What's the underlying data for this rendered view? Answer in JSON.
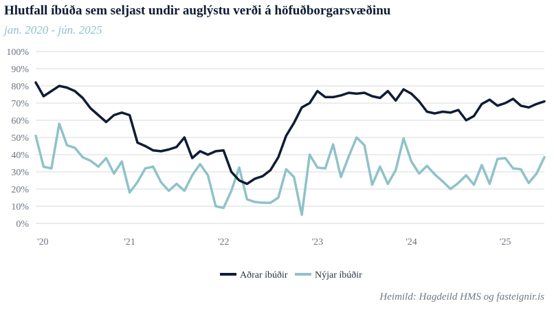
{
  "title": "Hlutfall íbúða sem seljast undir auglýstu verði á höfuðborgarsvæðinu",
  "subtitle": "jan. 2020 - jún. 2025",
  "source": "Heimild: Hagdeild HMS og fasteignir.is",
  "colors": {
    "annad": "#0f1c33",
    "nyjar": "#8fc2c9",
    "grid": "#d4d8dc"
  },
  "chart_data": {
    "type": "line",
    "title": "Hlutfall íbúða sem seljast undir auglýstu verði á höfuðborgarsvæðinu",
    "subtitle": "jan. 2020 - jún. 2025",
    "x": [
      "2020-01",
      "2020-02",
      "2020-03",
      "2020-04",
      "2020-05",
      "2020-06",
      "2020-07",
      "2020-08",
      "2020-09",
      "2020-10",
      "2020-11",
      "2020-12",
      "2021-01",
      "2021-02",
      "2021-03",
      "2021-04",
      "2021-05",
      "2021-06",
      "2021-07",
      "2021-08",
      "2021-09",
      "2021-10",
      "2021-11",
      "2021-12",
      "2022-01",
      "2022-02",
      "2022-03",
      "2022-04",
      "2022-05",
      "2022-06",
      "2022-07",
      "2022-08",
      "2022-09",
      "2022-10",
      "2022-11",
      "2022-12",
      "2023-01",
      "2023-02",
      "2023-03",
      "2023-04",
      "2023-05",
      "2023-06",
      "2023-07",
      "2023-08",
      "2023-09",
      "2023-10",
      "2023-11",
      "2023-12",
      "2024-01",
      "2024-02",
      "2024-03",
      "2024-04",
      "2024-05",
      "2024-06",
      "2024-07",
      "2024-08",
      "2024-09",
      "2024-10",
      "2024-11",
      "2024-12",
      "2025-01",
      "2025-02",
      "2025-03",
      "2025-04",
      "2025-05",
      "2025-06"
    ],
    "xticks": [
      "'20",
      "'21",
      "'22",
      "'23",
      "'24",
      "'25"
    ],
    "ylim": [
      0,
      100
    ],
    "yticks": [
      "0%",
      "10%",
      "20%",
      "30%",
      "40%",
      "50%",
      "60%",
      "70%",
      "80%",
      "90%",
      "100%"
    ],
    "grid": true,
    "legend_position": "bottom-center",
    "series": [
      {
        "name": "Aðrar íbúðir",
        "color": "#0f1c33",
        "values": [
          82,
          74,
          77,
          80,
          79,
          77,
          73,
          67,
          63,
          59,
          63,
          64.5,
          63,
          47,
          45,
          42.5,
          42,
          43,
          44.5,
          50,
          38,
          42,
          40,
          42,
          42.5,
          30,
          25,
          23,
          26,
          27.5,
          31,
          38.5,
          51,
          58.5,
          67.5,
          70,
          77,
          73.5,
          73.5,
          74.5,
          76,
          75.5,
          76,
          74,
          73,
          77,
          71.5,
          78,
          75.5,
          71,
          65,
          64,
          65,
          64.5,
          66,
          60,
          62.5,
          69.5,
          72,
          68.5,
          70,
          72.5,
          68.5,
          67.5,
          69.5,
          71
        ]
      },
      {
        "name": "Nýjar íbúðir",
        "color": "#8fc2c9",
        "values": [
          51,
          33,
          32,
          58,
          45.5,
          44,
          38.5,
          36.5,
          33,
          38,
          29,
          36,
          18,
          24,
          32,
          33,
          24,
          19,
          23,
          19,
          28,
          34.5,
          28,
          10,
          9,
          19,
          32.5,
          14,
          12.5,
          12,
          12,
          15,
          31.5,
          27,
          5,
          40,
          32.5,
          32,
          46,
          27,
          39,
          50,
          45.5,
          22.5,
          33,
          23,
          31,
          49.5,
          36,
          29,
          33.5,
          28.5,
          24.5,
          20,
          23.5,
          28,
          22.5,
          34,
          23,
          37.5,
          38,
          32,
          31.5,
          23.5,
          29,
          38.5
        ]
      }
    ]
  }
}
